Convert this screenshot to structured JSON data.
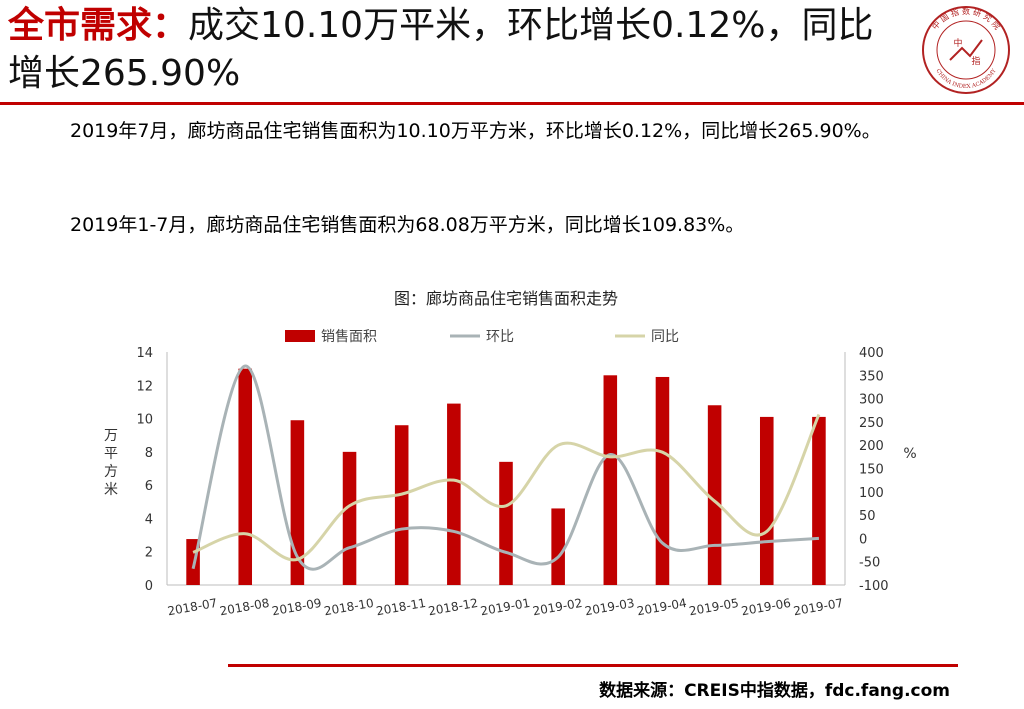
{
  "header": {
    "title_keyword": "全市需求：",
    "title_rest": "成交10.10万平米，环比增长0.12%，同比增长265.90%",
    "logo_text_top": "中 国 指 数 研 究 院",
    "logo_text_bottom": "CHINA INDEX ACADEMY",
    "logo_center_left": "中",
    "logo_center_right": "指"
  },
  "body": {
    "paragraph1": "2019年7月，廊坊商品住宅销售面积为10.10万平方米，环比增长0.12%，同比增长265.90%。",
    "paragraph2": "2019年1-7月，廊坊商品住宅销售面积为68.08万平方米，同比增长109.83%。"
  },
  "footer": {
    "source": "数据来源：CREIS中指数据，fdc.fang.com"
  },
  "colors": {
    "accent": "#c00000",
    "bar": "#c00000",
    "mom_line": "#a9b3b6",
    "yoy_line": "#d6d4a8"
  },
  "chart_data": {
    "type": "bar",
    "title": "图：廊坊商品住宅销售面积走势",
    "categories": [
      "2018-07",
      "2018-08",
      "2018-09",
      "2018-10",
      "2018-11",
      "2018-12",
      "2019-01",
      "2019-02",
      "2019-03",
      "2019-04",
      "2019-05",
      "2019-06",
      "2019-07"
    ],
    "series": [
      {
        "name": "销售面积",
        "type": "bar",
        "axis": "left",
        "values": [
          2.76,
          13.0,
          9.9,
          8.0,
          9.6,
          10.9,
          7.4,
          4.6,
          12.6,
          12.5,
          10.8,
          10.1,
          10.1
        ]
      },
      {
        "name": "环比",
        "type": "line",
        "axis": "right",
        "values": [
          -65,
          370,
          -40,
          -20,
          20,
          15,
          -30,
          -40,
          180,
          -10,
          -15,
          -7,
          0.12
        ]
      },
      {
        "name": "同比",
        "type": "line",
        "axis": "right",
        "values": [
          -30,
          10,
          -45,
          70,
          95,
          125,
          70,
          200,
          175,
          185,
          80,
          15,
          265.9
        ]
      }
    ],
    "ylabel": "万平方米",
    "y2label": "%",
    "ylim": [
      0,
      14
    ],
    "y2lim": [
      -100,
      400
    ],
    "yticks": [
      0,
      2,
      4,
      6,
      8,
      10,
      12,
      14
    ],
    "y2ticks": [
      -100,
      -50,
      0,
      50,
      100,
      150,
      200,
      250,
      300,
      350,
      400
    ],
    "legend": "top",
    "grid": false
  }
}
